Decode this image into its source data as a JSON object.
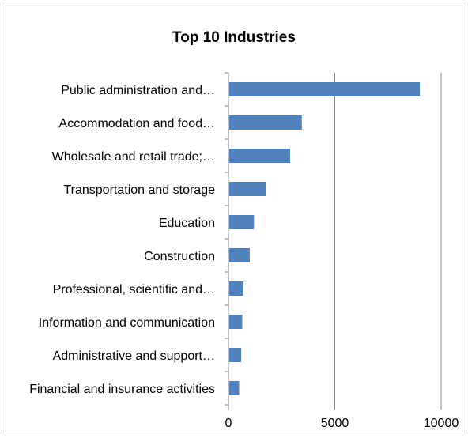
{
  "chart_data": {
    "type": "bar",
    "orientation": "horizontal",
    "title": "Top 10 Industries",
    "xlabel": "",
    "ylabel": "",
    "categories": [
      "Public administration and…",
      "Accommodation and food…",
      "Wholesale and retail trade;…",
      "Transportation and storage",
      "Education",
      "Construction",
      "Professional, scientific and…",
      "Information and communication",
      "Administrative and support…",
      "Financial and insurance activities"
    ],
    "values": [
      9000,
      3450,
      2900,
      1750,
      1200,
      1000,
      700,
      650,
      600,
      500
    ],
    "xlim": [
      0,
      10000
    ],
    "xticks": [
      0,
      5000,
      10000
    ],
    "xtick_labels": [
      "0",
      "5000",
      "10000"
    ],
    "grid": "vertical major gridlines",
    "legend": "none",
    "bar_color": "#4f81bd"
  }
}
